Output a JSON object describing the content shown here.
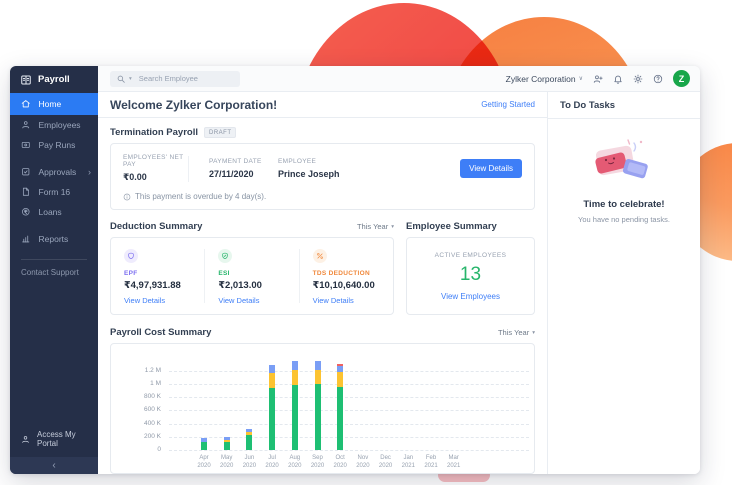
{
  "colors": {
    "accent_blue": "#3e7ef7",
    "sidebar_navy": "#252f48",
    "active_item_blue": "#2b7bf3",
    "success_green": "#27b56b",
    "avatar_green": "#18a64a",
    "decor_red": "#f2584e",
    "decor_orange": "#f78a46"
  },
  "brand": {
    "app_name": "Payroll"
  },
  "sidebar": {
    "items": [
      {
        "id": "home",
        "label": "Home",
        "icon": "home-icon",
        "active": true
      },
      {
        "id": "employees",
        "label": "Employees",
        "icon": "employees-icon"
      },
      {
        "id": "pay-runs",
        "label": "Pay Runs",
        "icon": "pay-runs-icon"
      },
      {
        "id": "approvals",
        "label": "Approvals",
        "icon": "approvals-icon",
        "gap": true,
        "chevron": "›"
      },
      {
        "id": "form-16",
        "label": "Form 16",
        "icon": "form16-icon"
      },
      {
        "id": "loans",
        "label": "Loans",
        "icon": "loans-icon"
      },
      {
        "id": "reports",
        "label": "Reports",
        "icon": "reports-icon",
        "gap": true
      }
    ],
    "contact_support": "Contact Support",
    "access_portal": "Access My Portal",
    "collapse_glyph": "‹"
  },
  "topbar": {
    "search_placeholder": "Search Employee",
    "company_name": "Zylker Corporation",
    "avatar_letter": "Z"
  },
  "header": {
    "welcome_title": "Welcome Zylker Corporation!",
    "getting_started_link": "Getting Started"
  },
  "termination_payroll": {
    "section_title": "Termination Payroll",
    "status_badge": "DRAFT",
    "fields": [
      {
        "label": "EMPLOYEES' NET PAY",
        "value": "₹0.00"
      },
      {
        "label": "PAYMENT DATE",
        "value": "27/11/2020"
      },
      {
        "label": "EMPLOYEE",
        "value": "Prince Joseph"
      }
    ],
    "view_details_button": "View Details",
    "overdue_note": "This payment is overdue by 4 day(s)."
  },
  "deduction_summary": {
    "section_title": "Deduction Summary",
    "period_filter": "This Year",
    "items": [
      {
        "label": "EPF",
        "value": "₹4,97,931.88",
        "link": "View Details",
        "icon": "shield-icon",
        "color": "#7b6ef0",
        "bg": "#efecfd"
      },
      {
        "label": "ESI",
        "value": "₹2,013.00",
        "link": "View Details",
        "icon": "shield-check-icon",
        "color": "#27b56b",
        "bg": "#e7f7ee"
      },
      {
        "label": "TDS DEDUCTION",
        "value": "₹10,10,640.00",
        "link": "View Details",
        "icon": "percent-icon",
        "color": "#f0883b",
        "bg": "#fdf1e5"
      }
    ]
  },
  "employee_summary": {
    "section_title": "Employee Summary",
    "metric_label": "ACTIVE EMPLOYEES",
    "metric_value": "13",
    "link": "View Employees"
  },
  "payroll_cost": {
    "section_title": "Payroll Cost Summary",
    "period_filter": "This Year"
  },
  "todo": {
    "panel_title": "To Do Tasks",
    "headline": "Time to celebrate!",
    "subtext": "You have no pending tasks."
  },
  "chart_data": {
    "type": "bar",
    "stacked": true,
    "title": "Payroll Cost Summary",
    "period": "This Year",
    "categories": [
      "Apr 2020",
      "May 2020",
      "Jun 2020",
      "Jul 2020",
      "Aug 2020",
      "Sep 2020",
      "Oct 2020",
      "Nov 2020",
      "Dec 2020",
      "Jan 2021",
      "Feb 2021",
      "Mar 2021"
    ],
    "series": [
      {
        "name": "green",
        "color": "#1ebf73",
        "values": [
          115000,
          118000,
          228000,
          940000,
          990000,
          1000000,
          960000,
          0,
          0,
          0,
          0,
          0
        ]
      },
      {
        "name": "yellow",
        "color": "#fcc331",
        "values": [
          12000,
          35000,
          40000,
          225000,
          215000,
          210000,
          220000,
          0,
          0,
          0,
          0,
          0
        ]
      },
      {
        "name": "blue",
        "color": "#7a9ef5",
        "values": [
          55000,
          40000,
          50000,
          125000,
          140000,
          135000,
          95000,
          0,
          0,
          0,
          0,
          0
        ]
      },
      {
        "name": "red",
        "color": "#ef6262",
        "values": [
          0,
          0,
          0,
          0,
          0,
          0,
          30000,
          0,
          0,
          0,
          0,
          0
        ]
      }
    ],
    "ylim": [
      0,
      1400000
    ],
    "ytick_values": [
      0,
      200000,
      400000,
      600000,
      800000,
      1000000,
      1200000
    ],
    "ytick_labels": [
      "0",
      "200 K",
      "400 K",
      "600 K",
      "800 K",
      "1 M",
      "1.2 M"
    ],
    "grid": "horizontal-dashed",
    "legend": "none"
  }
}
